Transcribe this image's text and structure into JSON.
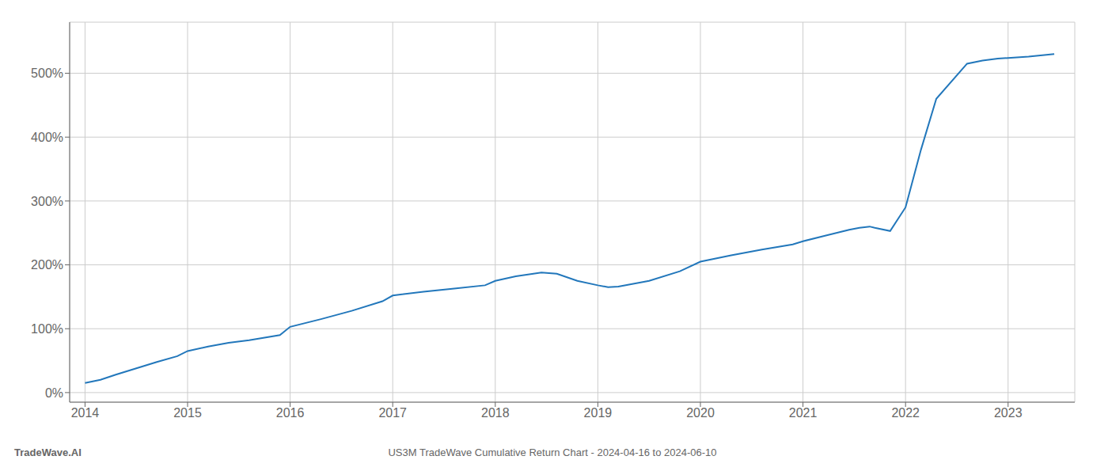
{
  "chart_data": {
    "type": "line",
    "title": "US3M TradeWave Cumulative Return Chart - 2024-04-16 to 2024-06-10",
    "annotations": [
      "TradeWave.AI"
    ],
    "color": "#2277bb",
    "grid": true,
    "x": [
      2014.0,
      2014.15,
      2014.3,
      2014.5,
      2014.7,
      2014.9,
      2015.0,
      2015.2,
      2015.4,
      2015.6,
      2015.9,
      2016.0,
      2016.3,
      2016.6,
      2016.9,
      2017.0,
      2017.3,
      2017.6,
      2017.9,
      2018.0,
      2018.2,
      2018.45,
      2018.6,
      2018.8,
      2019.0,
      2019.1,
      2019.2,
      2019.5,
      2019.8,
      2020.0,
      2020.3,
      2020.6,
      2020.9,
      2021.0,
      2021.2,
      2021.45,
      2021.55,
      2021.65,
      2021.7,
      2021.85,
      2022.0,
      2022.15,
      2022.3,
      2022.6,
      2022.75,
      2022.9,
      2023.0,
      2023.2,
      2023.45
    ],
    "values": [
      15,
      20,
      28,
      38,
      48,
      57,
      65,
      72,
      78,
      82,
      90,
      103,
      115,
      128,
      143,
      152,
      158,
      163,
      168,
      175,
      182,
      188,
      186,
      175,
      168,
      165,
      166,
      175,
      190,
      205,
      215,
      224,
      232,
      237,
      245,
      255,
      258,
      260,
      258,
      253,
      290,
      380,
      460,
      515,
      520,
      523,
      524,
      526,
      530
    ],
    "xlim": [
      2013.85,
      2023.65
    ],
    "xticks": [
      2014,
      2015,
      2016,
      2017,
      2018,
      2019,
      2020,
      2021,
      2022,
      2023
    ],
    "ylim": [
      -15,
      580
    ],
    "yticks": [
      {
        "value": 0,
        "label": "0%"
      },
      {
        "value": 100,
        "label": "100%"
      },
      {
        "value": 200,
        "label": "200%"
      },
      {
        "value": 300,
        "label": "300%"
      },
      {
        "value": 400,
        "label": "400%"
      },
      {
        "value": 500,
        "label": "500%"
      }
    ]
  }
}
